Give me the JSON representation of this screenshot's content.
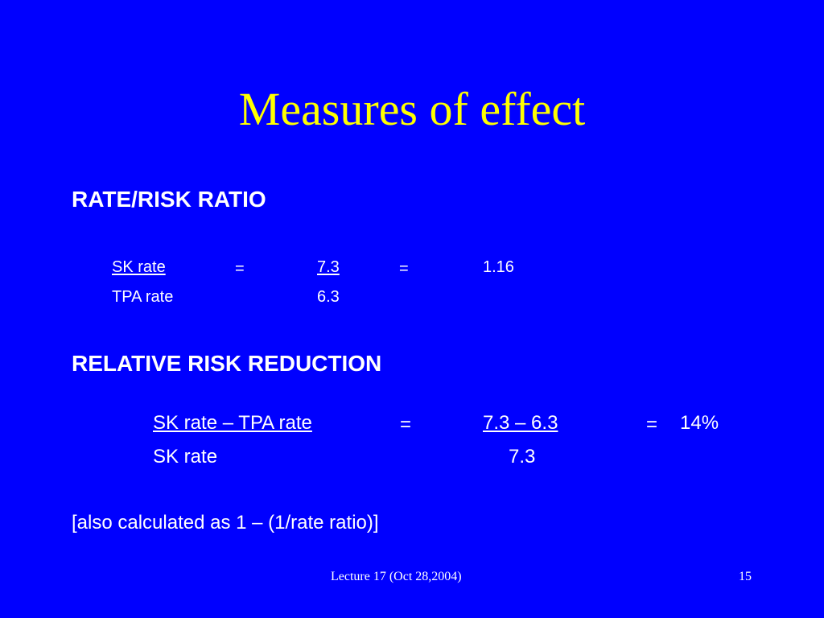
{
  "slide": {
    "title": "Measures of effect",
    "title_color": "#ffff00",
    "background_color": "#0000ff",
    "text_color": "#ffffff"
  },
  "section1": {
    "heading": "RATE/RISK RATIO",
    "row1": {
      "numerator_label": "SK rate",
      "equals_1": "=",
      "numerator_value": "7.3",
      "equals_2": "=",
      "result": "1.16"
    },
    "row2": {
      "denominator_label": "TPA rate",
      "denominator_value": "6.3"
    }
  },
  "section2": {
    "heading": "RELATIVE RISK REDUCTION",
    "row1": {
      "numerator_label": "SK rate – TPA rate",
      "equals_1": "=",
      "numerator_value": "7.3 – 6.3",
      "equals_2": "=",
      "result": "14%"
    },
    "row2": {
      "denominator_label": "SK rate",
      "denominator_value": "7.3"
    }
  },
  "note": "[also calculated as 1 – (1/rate ratio)]",
  "footer": {
    "lecture": "Lecture 17 (Oct 28,2004)",
    "page_number": "15"
  }
}
